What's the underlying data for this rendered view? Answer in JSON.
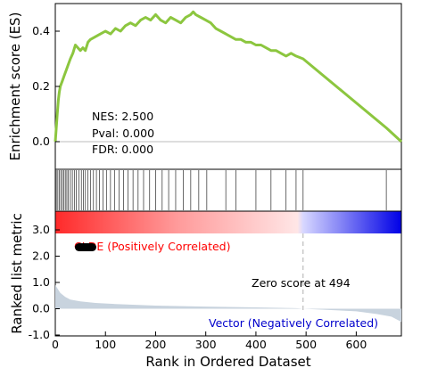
{
  "chart_data": [
    {
      "type": "line",
      "panel": "enrichment",
      "ylabel": "Enrichment score (ES)",
      "ylim": [
        -0.1,
        0.5
      ],
      "xlim": [
        0,
        690
      ],
      "yticks": [
        "0.0",
        "0.2",
        "0.4"
      ],
      "zero_line": true,
      "line_color": "#8cc63f",
      "stats": [
        "NES: 2.500",
        "Pval: 0.000",
        "FDR: 0.000"
      ],
      "x": [
        0,
        2,
        4,
        6,
        8,
        10,
        14,
        18,
        22,
        26,
        30,
        35,
        40,
        45,
        50,
        55,
        60,
        65,
        70,
        80,
        90,
        100,
        110,
        120,
        130,
        140,
        150,
        160,
        170,
        180,
        190,
        200,
        210,
        220,
        230,
        240,
        250,
        260,
        270,
        275,
        280,
        290,
        300,
        310,
        320,
        330,
        340,
        350,
        360,
        370,
        380,
        390,
        400,
        410,
        420,
        430,
        440,
        450,
        460,
        470,
        480,
        494,
        660,
        690
      ],
      "y": [
        0.0,
        0.05,
        0.1,
        0.15,
        0.18,
        0.2,
        0.22,
        0.24,
        0.26,
        0.28,
        0.3,
        0.32,
        0.35,
        0.34,
        0.33,
        0.34,
        0.33,
        0.36,
        0.37,
        0.38,
        0.39,
        0.4,
        0.39,
        0.41,
        0.4,
        0.42,
        0.43,
        0.42,
        0.44,
        0.45,
        0.44,
        0.46,
        0.44,
        0.43,
        0.45,
        0.44,
        0.43,
        0.45,
        0.46,
        0.47,
        0.46,
        0.45,
        0.44,
        0.43,
        0.41,
        0.4,
        0.39,
        0.38,
        0.37,
        0.37,
        0.36,
        0.36,
        0.35,
        0.35,
        0.34,
        0.33,
        0.33,
        0.32,
        0.31,
        0.32,
        0.31,
        0.3,
        0.05,
        0.0
      ]
    },
    {
      "type": "barcode",
      "panel": "hits",
      "hits": [
        2,
        5,
        8,
        11,
        14,
        17,
        20,
        23,
        26,
        30,
        34,
        38,
        42,
        47,
        52,
        56,
        60,
        65,
        70,
        76,
        82,
        88,
        95,
        102,
        110,
        118,
        127,
        136,
        145,
        155,
        165,
        176,
        188,
        200,
        213,
        226,
        240,
        255,
        270,
        286,
        302,
        340,
        360,
        400,
        430,
        460,
        480,
        494,
        660
      ]
    },
    {
      "type": "heatmap",
      "panel": "colorbar",
      "left_color": "#ff0000",
      "mid_color": "#ffffff",
      "right_color": "#0000ff",
      "split_rank": 494,
      "xlim": [
        0,
        690
      ]
    },
    {
      "type": "area",
      "panel": "ranked_metric",
      "ylabel": "Ranked list metric",
      "xlabel": "Rank in Ordered Dataset",
      "ylim": [
        -1.0,
        3.0
      ],
      "xlim": [
        0,
        690
      ],
      "yticks": [
        "-1.0",
        "0.0",
        "1.0",
        "2.0",
        "3.0"
      ],
      "xticks": [
        "0",
        "100",
        "200",
        "300",
        "400",
        "500",
        "600"
      ],
      "fill_color": "#c8d3de",
      "positive_label": "CLDE (Positively Correlated)",
      "negative_label": "Vector (Negatively Correlated)",
      "zero_cross_label": "Zero score at 494",
      "zero_cross_rank": 494,
      "x": [
        0,
        5,
        10,
        20,
        30,
        50,
        80,
        120,
        200,
        300,
        400,
        480,
        494,
        550,
        600,
        640,
        670,
        690
      ],
      "y": [
        0.9,
        0.75,
        0.6,
        0.45,
        0.35,
        0.28,
        0.22,
        0.18,
        0.12,
        0.08,
        0.05,
        0.02,
        0.0,
        -0.05,
        -0.1,
        -0.2,
        -0.3,
        -0.5
      ]
    }
  ]
}
